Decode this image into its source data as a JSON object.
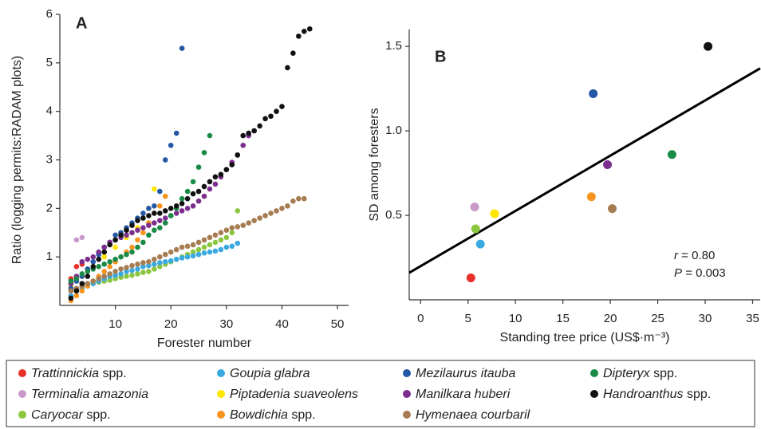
{
  "chart_data": [
    {
      "type": "scatter",
      "panel_label": "A",
      "x_label": "Forester number",
      "y_label": "Ratio (logging permits:RADAM plots)",
      "xlim": [
        0,
        52
      ],
      "ylim": [
        0,
        6
      ],
      "xticks": [
        10,
        20,
        30,
        40,
        50
      ],
      "yticks": [
        1,
        2,
        3,
        4,
        5,
        6
      ],
      "series": [
        {
          "name": "Trattinnickia spp.",
          "color": "#e8302a",
          "x": [
            2,
            3,
            4
          ],
          "values": [
            0.55,
            0.8,
            0.85
          ]
        },
        {
          "name": "Terminalia amazonia",
          "color": "#c89ac8",
          "x": [
            3,
            4
          ],
          "values": [
            1.35,
            1.4
          ]
        },
        {
          "name": "Caryocar spp.",
          "color": "#8cc63f",
          "x": [
            2,
            3,
            4,
            5,
            6,
            7,
            8,
            9,
            10,
            11,
            12,
            13,
            14,
            15,
            16,
            17,
            18,
            19,
            20,
            21,
            22,
            23,
            24,
            25,
            26,
            27,
            28,
            29,
            30,
            31,
            32
          ],
          "values": [
            0.2,
            0.3,
            0.38,
            0.42,
            0.45,
            0.48,
            0.5,
            0.52,
            0.55,
            0.58,
            0.6,
            0.62,
            0.65,
            0.68,
            0.7,
            0.75,
            0.8,
            0.85,
            0.9,
            0.95,
            1.0,
            1.05,
            1.1,
            1.15,
            1.2,
            1.25,
            1.3,
            1.35,
            1.4,
            1.5,
            1.95
          ]
        },
        {
          "name": "Goupia glabra",
          "color": "#3aa9e0",
          "x": [
            2,
            3,
            4,
            5,
            6,
            7,
            8,
            9,
            10,
            11,
            12,
            13,
            14,
            15,
            16,
            17,
            18,
            19,
            20,
            21,
            22,
            23,
            24,
            25,
            26,
            27,
            28,
            29,
            30,
            31,
            32
          ],
          "values": [
            0.2,
            0.3,
            0.35,
            0.4,
            0.45,
            0.5,
            0.55,
            0.6,
            0.62,
            0.65,
            0.7,
            0.72,
            0.75,
            0.8,
            0.82,
            0.85,
            0.88,
            0.9,
            0.92,
            0.95,
            0.98,
            1.0,
            1.02,
            1.05,
            1.08,
            1.1,
            1.12,
            1.15,
            1.2,
            1.22,
            1.28
          ]
        },
        {
          "name": "Piptadenia suaveolens",
          "color": "#ffe600",
          "x": [
            2,
            4,
            6,
            8,
            10,
            12,
            14,
            15,
            16,
            17
          ],
          "values": [
            0.4,
            0.6,
            0.8,
            1.0,
            1.2,
            1.4,
            1.6,
            1.8,
            2.0,
            2.4
          ]
        },
        {
          "name": "Bowdichia spp.",
          "color": "#f7941d",
          "x": [
            2,
            3,
            4,
            5,
            6,
            7,
            8,
            9,
            10,
            11,
            12,
            13,
            14,
            15,
            16,
            17,
            18,
            19
          ],
          "values": [
            0.1,
            0.2,
            0.3,
            0.4,
            0.5,
            0.6,
            0.7,
            0.8,
            0.9,
            1.0,
            1.1,
            1.2,
            1.35,
            1.5,
            1.7,
            1.9,
            2.05,
            2.25
          ]
        },
        {
          "name": "Mezilaurus itauba",
          "color": "#2457a6",
          "x": [
            2,
            3,
            4,
            5,
            6,
            7,
            8,
            9,
            10,
            11,
            12,
            13,
            14,
            15,
            16,
            17,
            18,
            19,
            20,
            21,
            22
          ],
          "values": [
            0.35,
            0.5,
            0.6,
            0.75,
            0.9,
            1.05,
            1.2,
            1.3,
            1.45,
            1.5,
            1.6,
            1.7,
            1.8,
            1.9,
            2.0,
            2.05,
            2.35,
            3.0,
            3.3,
            3.55,
            5.3
          ]
        },
        {
          "name": "Manilkara huberi",
          "color": "#7b2e8e",
          "x": [
            2,
            3,
            4,
            5,
            6,
            7,
            8,
            9,
            10,
            11,
            12,
            13,
            14,
            15,
            16,
            17,
            18,
            19,
            20,
            21,
            22,
            23,
            24,
            25,
            26,
            27,
            28,
            29,
            30,
            31,
            32,
            33,
            34,
            35
          ],
          "values": [
            0.45,
            0.6,
            0.9,
            0.95,
            1.0,
            1.1,
            1.2,
            1.3,
            1.35,
            1.4,
            1.45,
            1.5,
            1.55,
            1.6,
            1.65,
            1.7,
            1.75,
            1.8,
            1.85,
            1.9,
            1.95,
            2.0,
            2.05,
            2.15,
            2.25,
            2.4,
            2.5,
            2.65,
            2.8,
            2.95,
            3.1,
            3.3,
            3.5,
            3.6
          ]
        },
        {
          "name": "Hymenaea courbaril",
          "color": "#a67c52",
          "x": [
            2,
            3,
            4,
            5,
            6,
            7,
            8,
            9,
            10,
            11,
            12,
            13,
            14,
            15,
            16,
            17,
            18,
            19,
            20,
            21,
            22,
            23,
            24,
            25,
            26,
            27,
            28,
            29,
            30,
            31,
            32,
            33,
            34,
            35,
            36,
            37,
            38,
            39,
            40,
            41,
            42,
            43,
            44
          ],
          "values": [
            0.3,
            0.35,
            0.4,
            0.45,
            0.5,
            0.55,
            0.6,
            0.65,
            0.7,
            0.75,
            0.78,
            0.82,
            0.85,
            0.88,
            0.9,
            0.95,
            1.0,
            1.05,
            1.1,
            1.15,
            1.2,
            1.22,
            1.25,
            1.3,
            1.35,
            1.4,
            1.45,
            1.5,
            1.55,
            1.6,
            1.62,
            1.65,
            1.7,
            1.75,
            1.8,
            1.85,
            1.9,
            1.95,
            2.0,
            2.05,
            2.15,
            2.2,
            2.2
          ]
        },
        {
          "name": "Dipteryx spp.",
          "color": "#1a8a47",
          "x": [
            2,
            3,
            4,
            5,
            6,
            7,
            8,
            9,
            10,
            11,
            12,
            13,
            14,
            15,
            16,
            17,
            18,
            19,
            20,
            21,
            22,
            23,
            24,
            25,
            26,
            27
          ],
          "values": [
            0.5,
            0.55,
            0.65,
            0.7,
            0.75,
            0.8,
            0.85,
            0.9,
            0.95,
            1.0,
            1.05,
            1.1,
            1.2,
            1.3,
            1.45,
            1.55,
            1.6,
            1.7,
            1.85,
            2.0,
            2.2,
            2.35,
            2.55,
            2.85,
            3.15,
            3.5
          ]
        },
        {
          "name": "Handroanthus spp.",
          "color": "#111111",
          "x": [
            2,
            3,
            4,
            5,
            6,
            7,
            8,
            9,
            10,
            11,
            12,
            13,
            14,
            15,
            16,
            17,
            18,
            19,
            20,
            21,
            22,
            23,
            24,
            25,
            26,
            27,
            28,
            29,
            30,
            31,
            32,
            33,
            34,
            35,
            36,
            37,
            38,
            39,
            40,
            41,
            42,
            43,
            44,
            45
          ],
          "values": [
            0.15,
            0.3,
            0.45,
            0.6,
            0.8,
            0.95,
            1.1,
            1.25,
            1.35,
            1.45,
            1.55,
            1.65,
            1.75,
            1.8,
            1.85,
            1.9,
            1.9,
            1.95,
            2.0,
            2.05,
            2.1,
            2.2,
            2.3,
            2.35,
            2.45,
            2.55,
            2.65,
            2.7,
            2.8,
            2.9,
            3.1,
            3.5,
            3.55,
            3.6,
            3.7,
            3.85,
            3.9,
            4.0,
            4.1,
            4.9,
            5.2,
            5.55,
            5.65,
            5.7
          ]
        }
      ]
    },
    {
      "type": "scatter",
      "panel_label": "B",
      "x_label": "Standing tree price (US$·m⁻³)",
      "y_label": "SD among foresters",
      "xlim": [
        -1.2,
        35.8
      ],
      "ylim": [
        0,
        1.6
      ],
      "xticks": [
        0,
        5,
        10,
        15,
        20,
        25,
        30,
        35
      ],
      "yticks": [
        0.5,
        {
          "value": 1.0,
          "label": "1.0"
        },
        1.5
      ],
      "x": [
        5.3,
        5.7,
        5.8,
        6.3,
        7.8,
        18.0,
        18.2,
        19.7,
        20.2,
        26.5,
        30.3
      ],
      "values": [
        0.13,
        0.55,
        0.42,
        0.33,
        0.51,
        0.61,
        1.22,
        0.8,
        0.54,
        0.86,
        1.5
      ],
      "colors": [
        "#e8302a",
        "#c89ac8",
        "#8cc63f",
        "#3aa9e0",
        "#ffe600",
        "#f7941d",
        "#2457a6",
        "#7b2e8e",
        "#a67c52",
        "#1a8a47",
        "#111111"
      ],
      "trend_line": {
        "x": [
          -1.2,
          35.8
        ],
        "values": [
          0.16,
          1.37
        ]
      },
      "stats": [
        {
          "symbol": "r",
          "text": "= 0.80"
        },
        {
          "symbol": "P",
          "text": "= 0.003"
        }
      ]
    }
  ]
}
